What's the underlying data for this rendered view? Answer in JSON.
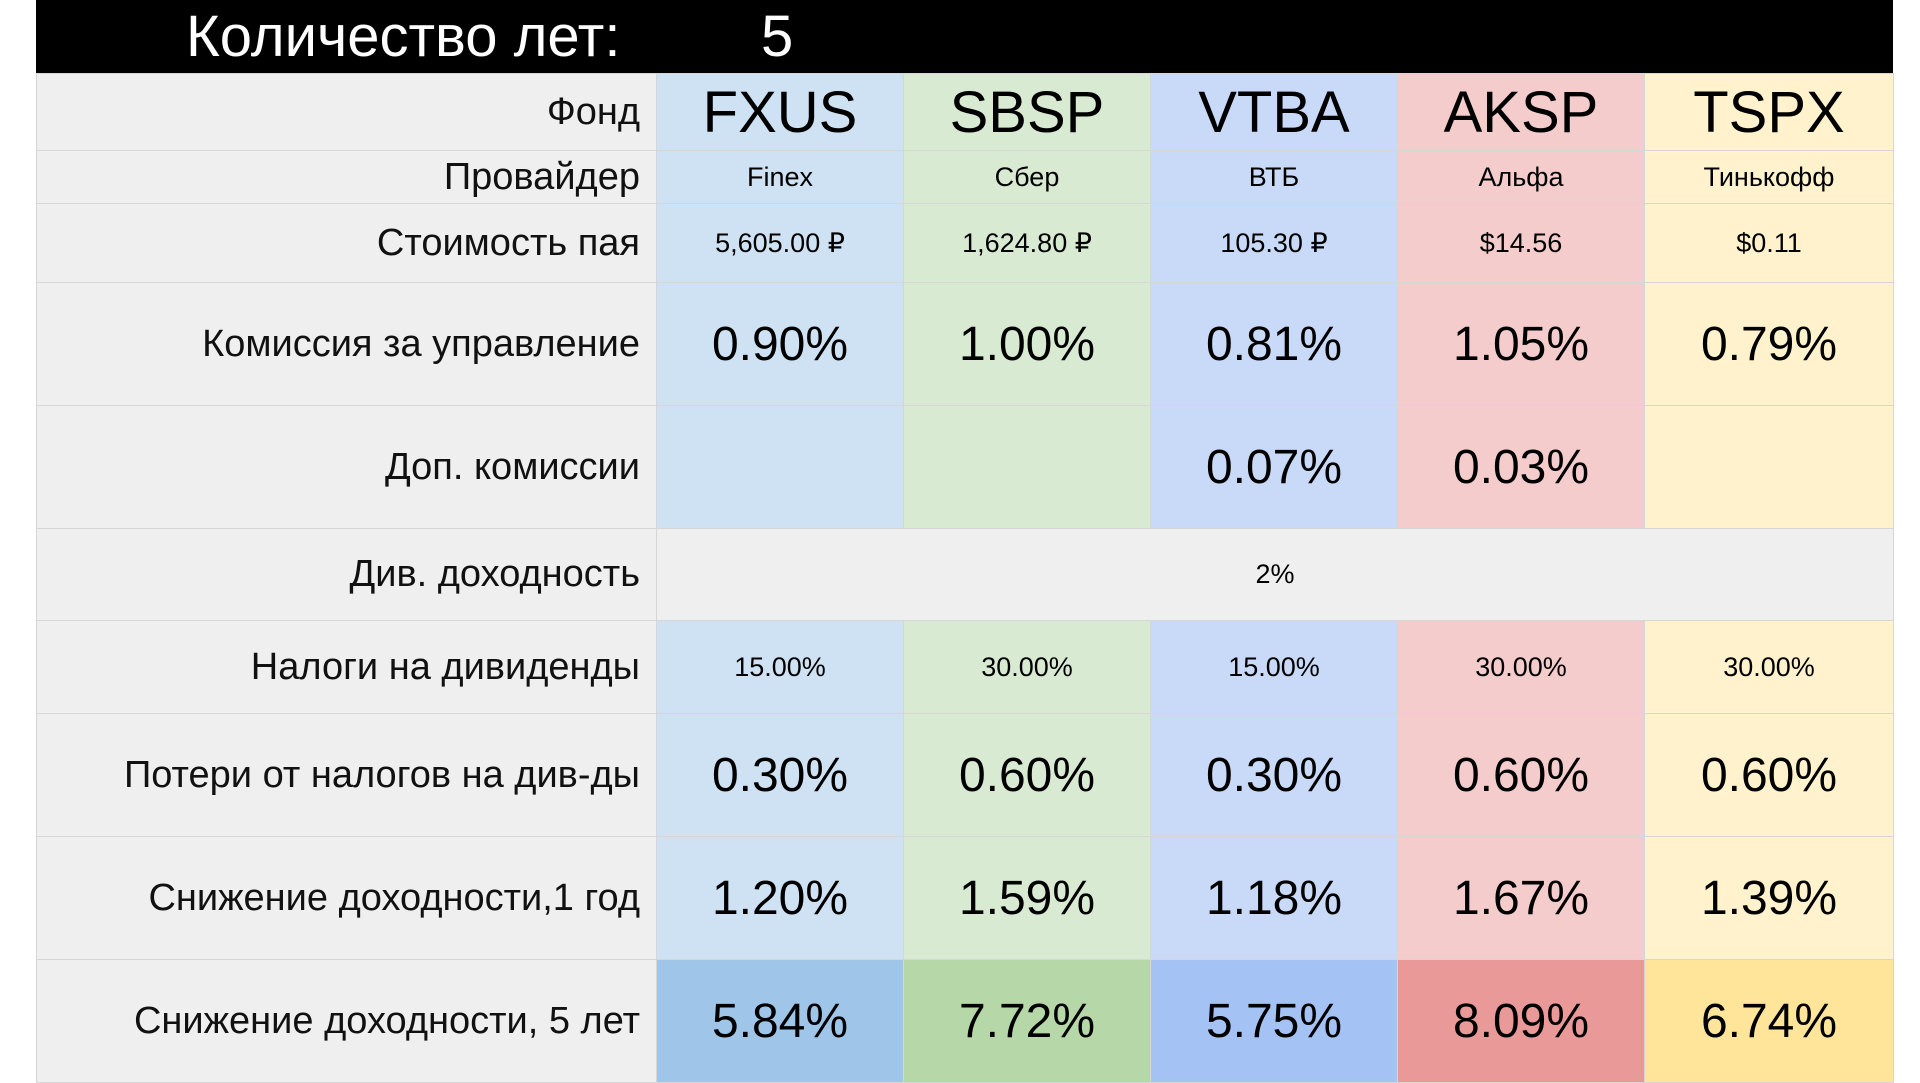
{
  "header": {
    "years_label": "Количество лет:",
    "years_value": "5"
  },
  "labels": {
    "fund": "Фонд",
    "provider": "Провайдер",
    "price": "Стоимость пая",
    "mgmt_fee": "Комиссия за управление",
    "extra_fee": "Доп. комиссии",
    "div_yield": "Див. доходность",
    "div_tax": "Налоги на дивиденды",
    "tax_loss": "Потери от налогов на див-ды",
    "reduction_1y": "Снижение доходности,1 год",
    "reduction_5y": "Снижение доходности, 5 лет"
  },
  "div_yield_value": "2%",
  "funds": [
    {
      "ticker": "FXUS",
      "provider": "Finex",
      "price": "5,605.00 ₽",
      "mgmt_fee": "0.90%",
      "extra_fee": "",
      "div_tax": "15.00%",
      "tax_loss": "0.30%",
      "reduction_1y": "1.20%",
      "reduction_5y": "5.84%",
      "color": "#cfe2f3",
      "color_dark": "#9fc5e8"
    },
    {
      "ticker": "SBSP",
      "provider": "Сбер",
      "price": "1,624.80 ₽",
      "mgmt_fee": "1.00%",
      "extra_fee": "",
      "div_tax": "30.00%",
      "tax_loss": "0.60%",
      "reduction_1y": "1.59%",
      "reduction_5y": "7.72%",
      "color": "#d9ead3",
      "color_dark": "#b6d7a8"
    },
    {
      "ticker": "VTBA",
      "provider": "ВТБ",
      "price": "105.30 ₽",
      "mgmt_fee": "0.81%",
      "extra_fee": "0.07%",
      "div_tax": "15.00%",
      "tax_loss": "0.30%",
      "reduction_1y": "1.18%",
      "reduction_5y": "5.75%",
      "color": "#c9daf8",
      "color_dark": "#a4c2f4"
    },
    {
      "ticker": "AKSP",
      "provider": "Альфа",
      "price": "$14.56",
      "mgmt_fee": "1.05%",
      "extra_fee": "0.03%",
      "div_tax": "30.00%",
      "tax_loss": "0.60%",
      "reduction_1y": "1.67%",
      "reduction_5y": "8.09%",
      "color": "#f4cccc",
      "color_dark": "#ea9999"
    },
    {
      "ticker": "TSPX",
      "provider": "Тинькофф",
      "price": "$0.11",
      "mgmt_fee": "0.79%",
      "extra_fee": "",
      "div_tax": "30.00%",
      "tax_loss": "0.60%",
      "reduction_1y": "1.39%",
      "reduction_5y": "6.74%",
      "color": "#fff2cc",
      "color_dark": "#ffe599"
    }
  ]
}
